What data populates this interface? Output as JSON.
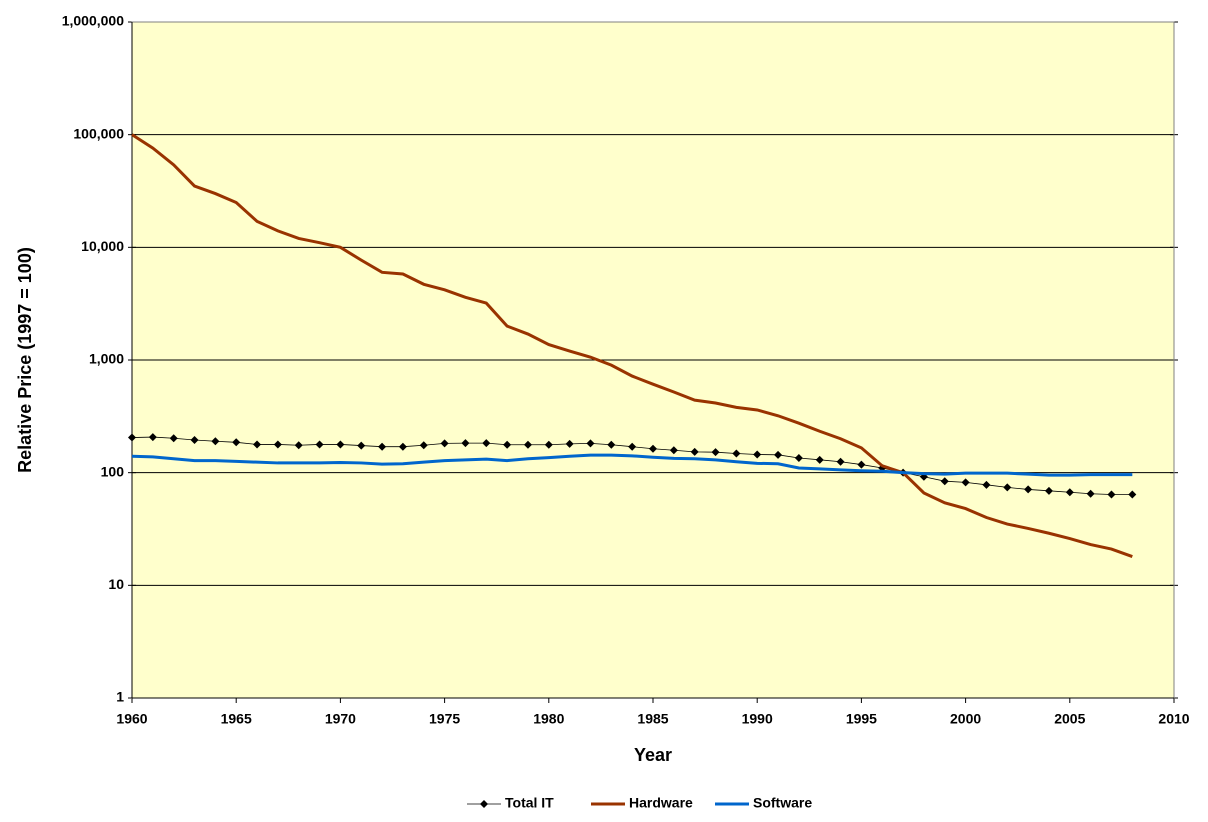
{
  "chart_data": {
    "type": "line",
    "xlabel": "Year",
    "ylabel": "Relative Price (1997 = 100)",
    "log_y": true,
    "grid": true,
    "legend": "bottom",
    "xlim": [
      1960,
      2010
    ],
    "xticks": [
      1960,
      1965,
      1970,
      1975,
      1980,
      1985,
      1990,
      1995,
      2000,
      2005,
      2010
    ],
    "ylim": [
      1,
      1000000
    ],
    "yticks": [
      1,
      10,
      100,
      {
        "value": 1000,
        "label": "1,000"
      },
      {
        "value": 10000,
        "label": "10,000"
      },
      {
        "value": 100000,
        "label": "100,000"
      },
      {
        "value": 1000000,
        "label": "1,000,000"
      }
    ],
    "x": [
      1960,
      1961,
      1962,
      1963,
      1964,
      1965,
      1966,
      1967,
      1968,
      1969,
      1970,
      1971,
      1972,
      1973,
      1974,
      1975,
      1976,
      1977,
      1978,
      1979,
      1980,
      1981,
      1982,
      1983,
      1984,
      1985,
      1986,
      1987,
      1988,
      1989,
      1990,
      1991,
      1992,
      1993,
      1994,
      1995,
      1996,
      1997,
      1998,
      1999,
      2000,
      2001,
      2002,
      2003,
      2004,
      2005,
      2006,
      2007,
      2008
    ],
    "series": [
      {
        "name": "Total IT",
        "color": "#000000",
        "marker": "diamond",
        "values": [
          205,
          207,
          202,
          195,
          190,
          186,
          178,
          178,
          175,
          178,
          178,
          174,
          170,
          170,
          175,
          182,
          183,
          183,
          177,
          177,
          177,
          180,
          182,
          177,
          170,
          163,
          158,
          153,
          152,
          148,
          145,
          144,
          135,
          130,
          125,
          118,
          110,
          100,
          92,
          84,
          82,
          78,
          74,
          71,
          69,
          67,
          65,
          64,
          64
        ]
      },
      {
        "name": "Hardware",
        "color": "#993300",
        "values": [
          100000,
          76000,
          54000,
          35000,
          30000,
          25000,
          17000,
          14000,
          12000,
          11000,
          10000,
          7700,
          6000,
          5800,
          4700,
          4200,
          3600,
          3200,
          2000,
          1700,
          1370,
          1200,
          1060,
          900,
          720,
          610,
          520,
          440,
          415,
          380,
          360,
          320,
          275,
          233,
          200,
          166,
          115,
          100,
          66,
          54,
          48,
          40,
          35,
          32,
          29,
          26,
          23,
          21,
          18
        ]
      },
      {
        "name": "Software",
        "color": "#0066cc",
        "values": [
          140,
          138,
          133,
          128,
          128,
          126,
          124,
          122,
          122,
          122,
          123,
          122,
          119,
          120,
          124,
          128,
          130,
          132,
          128,
          133,
          136,
          140,
          143,
          143,
          141,
          137,
          134,
          133,
          130,
          125,
          121,
          120,
          110,
          108,
          106,
          104,
          103,
          100,
          98,
          97,
          99,
          99,
          99,
          97,
          95,
          95,
          96,
          96,
          96
        ]
      }
    ]
  }
}
